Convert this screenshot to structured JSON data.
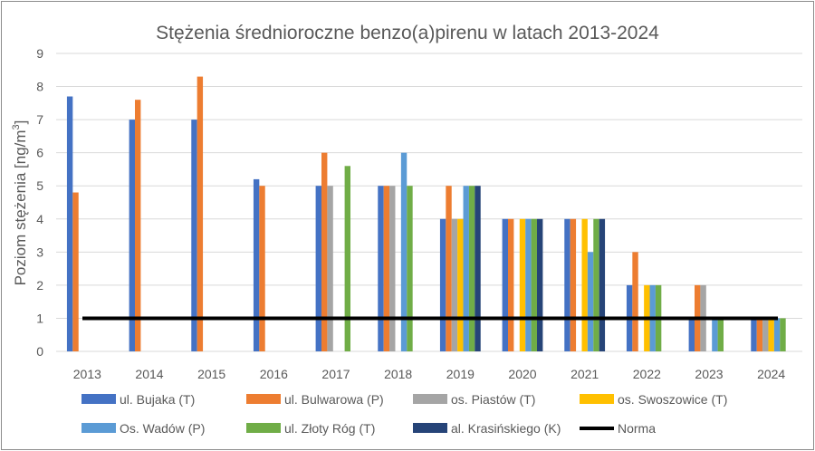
{
  "chart_data": {
    "type": "bar",
    "title": "Stężenia średnioroczne benzo(a)pirenu w latach 2013-2024",
    "ylabel": "Poziom stężenia [ng/m³]",
    "ylabel_base": "Poziom stężenia [ng/m",
    "ylabel_sup": "3",
    "ylabel_end": "]",
    "xlabel": "",
    "ylim": [
      0,
      9
    ],
    "yticks": [
      "0",
      "1",
      "2",
      "3",
      "4",
      "5",
      "6",
      "7",
      "8",
      "9"
    ],
    "grid": true,
    "legend_position": "bottom",
    "categories": [
      "2013",
      "2014",
      "2015",
      "2016",
      "2017",
      "2018",
      "2019",
      "2020",
      "2021",
      "2022",
      "2023",
      "2024"
    ],
    "series": [
      {
        "name": "ul. Bujaka (T)",
        "color": "#4472C4",
        "values": [
          7.7,
          7.0,
          7.0,
          5.2,
          5.0,
          5.0,
          4.0,
          4.0,
          4.0,
          2.0,
          1.0,
          1.0
        ]
      },
      {
        "name": "ul. Bulwarowa (P)",
        "color": "#ED7D31",
        "values": [
          4.8,
          7.6,
          8.3,
          5.0,
          6.0,
          5.0,
          5.0,
          4.0,
          4.0,
          3.0,
          2.0,
          1.0
        ]
      },
      {
        "name": "os. Piastów (T)",
        "color": "#A5A5A5",
        "values": [
          null,
          null,
          null,
          null,
          5.0,
          5.0,
          4.0,
          null,
          null,
          null,
          2.0,
          1.0
        ]
      },
      {
        "name": "os. Swoszowice (T)",
        "color": "#FFC000",
        "values": [
          null,
          null,
          null,
          null,
          null,
          null,
          4.0,
          4.0,
          4.0,
          2.0,
          null,
          1.0
        ]
      },
      {
        "name": "Os. Wadów (P)",
        "color": "#5B9BD5",
        "values": [
          null,
          null,
          null,
          null,
          null,
          6.0,
          5.0,
          4.0,
          3.0,
          2.0,
          1.0,
          1.0
        ]
      },
      {
        "name": "ul. Złoty Róg (T)",
        "color": "#70AD47",
        "values": [
          null,
          null,
          null,
          null,
          5.6,
          5.0,
          5.0,
          4.0,
          4.0,
          2.0,
          1.0,
          1.0
        ]
      },
      {
        "name": "al. Krasińskiego (K)",
        "color": "#264478",
        "values": [
          null,
          null,
          null,
          null,
          null,
          null,
          5.0,
          4.0,
          4.0,
          null,
          null,
          null
        ]
      }
    ],
    "reference_line": {
      "name": "Norma",
      "value": 1,
      "color": "#000000"
    }
  }
}
